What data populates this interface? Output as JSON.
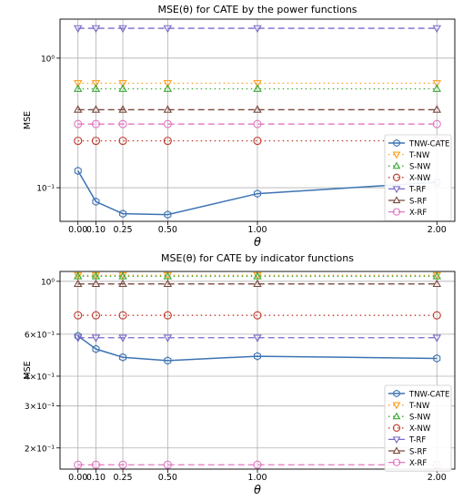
{
  "chart_data": [
    {
      "type": "line",
      "title": "MSE(θ) for CATE by the power functions",
      "xlabel": "θ",
      "ylabel": "MSE",
      "yscale": "log",
      "ylim": [
        0.055,
        2.0
      ],
      "grid": true,
      "legend_loc": "lower right",
      "x": [
        0.0,
        0.1,
        0.25,
        0.5,
        1.0,
        2.0
      ],
      "xticklabels": [
        "0.00",
        "0.10",
        "0.25",
        "0.50",
        "1.00",
        "2.00"
      ],
      "yticks": [
        {
          "value": 1.0,
          "label": "10⁰"
        },
        {
          "value": 0.1,
          "label": "10⁻¹"
        }
      ],
      "series": [
        {
          "name": "TNW-CATE",
          "values": [
            0.135,
            0.078,
            0.063,
            0.062,
            0.09,
            0.11
          ],
          "color": "#3d73b3",
          "marker": "hexagon",
          "line": "solid"
        },
        {
          "name": "T-NW",
          "values": [
            0.64,
            0.64,
            0.64,
            0.64,
            0.64,
            0.64
          ],
          "color": "#ff9f1c",
          "marker": "tri-down",
          "line": "dotted"
        },
        {
          "name": "S-NW",
          "values": [
            0.58,
            0.58,
            0.58,
            0.58,
            0.58,
            0.58
          ],
          "color": "#3aaa35",
          "marker": "tri-up",
          "line": "dotted"
        },
        {
          "name": "X-NW",
          "values": [
            0.23,
            0.23,
            0.23,
            0.23,
            0.23,
            0.23
          ],
          "color": "#c0392b",
          "marker": "circle",
          "line": "dotted"
        },
        {
          "name": "T-RF",
          "values": [
            1.7,
            1.7,
            1.7,
            1.7,
            1.7,
            1.7
          ],
          "color": "#7b68c9",
          "marker": "tri-down",
          "line": "dashed"
        },
        {
          "name": "S-RF",
          "values": [
            0.4,
            0.4,
            0.4,
            0.4,
            0.4,
            0.4
          ],
          "color": "#7a4b40",
          "marker": "tri-up",
          "line": "dashed"
        },
        {
          "name": "X-RF",
          "values": [
            0.31,
            0.31,
            0.31,
            0.31,
            0.31,
            0.31
          ],
          "color": "#e377c2",
          "marker": "circle",
          "line": "dashed"
        }
      ]
    },
    {
      "type": "line",
      "title": "MSE(θ) for CATE by indicator functions",
      "xlabel": "θ",
      "ylabel": "MSE",
      "yscale": "log",
      "ylim": [
        0.163,
        1.1
      ],
      "grid": true,
      "legend_loc": "lower right",
      "x": [
        0.0,
        0.1,
        0.25,
        0.5,
        1.0,
        2.0
      ],
      "xticklabels": [
        "0.00",
        "0.10",
        "0.25",
        "0.50",
        "1.00",
        "2.00"
      ],
      "yticks": [
        {
          "value": 1.0,
          "label": "10⁰"
        },
        {
          "value": 0.6,
          "label": "6×10⁻¹"
        },
        {
          "value": 0.4,
          "label": "4×10⁻¹"
        },
        {
          "value": 0.3,
          "label": "3×10⁻¹"
        },
        {
          "value": 0.2,
          "label": "2×10⁻¹"
        }
      ],
      "series": [
        {
          "name": "TNW-CATE",
          "values": [
            0.59,
            0.52,
            0.48,
            0.465,
            0.485,
            0.475
          ],
          "color": "#3d73b3",
          "marker": "hexagon",
          "line": "solid"
        },
        {
          "name": "T-NW",
          "values": [
            1.06,
            1.06,
            1.06,
            1.06,
            1.06,
            1.06
          ],
          "color": "#ff9f1c",
          "marker": "tri-down",
          "line": "dotted"
        },
        {
          "name": "S-NW",
          "values": [
            1.05,
            1.05,
            1.05,
            1.05,
            1.05,
            1.05
          ],
          "color": "#3aaa35",
          "marker": "tri-up",
          "line": "dotted"
        },
        {
          "name": "X-NW",
          "values": [
            0.72,
            0.72,
            0.72,
            0.72,
            0.72,
            0.72
          ],
          "color": "#c0392b",
          "marker": "circle",
          "line": "dotted"
        },
        {
          "name": "T-RF",
          "values": [
            0.58,
            0.58,
            0.58,
            0.58,
            0.58,
            0.58
          ],
          "color": "#7b68c9",
          "marker": "tri-down",
          "line": "dashed"
        },
        {
          "name": "S-RF",
          "values": [
            0.975,
            0.975,
            0.975,
            0.975,
            0.975,
            0.975
          ],
          "color": "#7a4b40",
          "marker": "tri-up",
          "line": "dashed"
        },
        {
          "name": "X-RF",
          "values": [
            0.17,
            0.17,
            0.17,
            0.17,
            0.17,
            0.17
          ],
          "color": "#e377c2",
          "marker": "circle",
          "line": "dashed"
        }
      ]
    }
  ]
}
